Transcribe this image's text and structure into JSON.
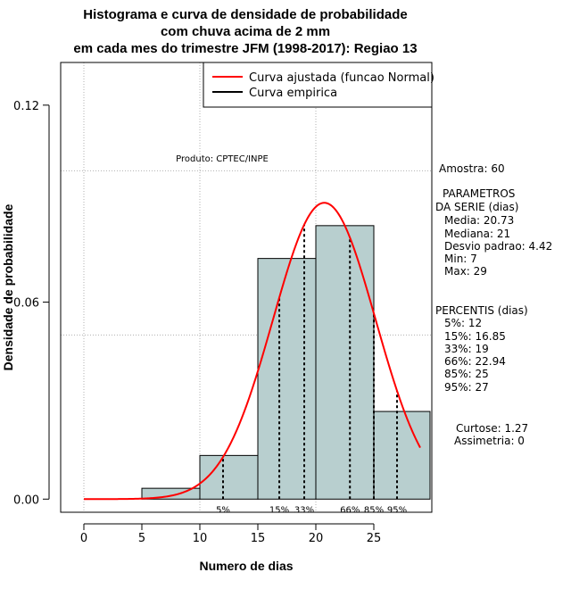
{
  "title_lines": [
    "Histograma e curva de densidade de probabilidade",
    "com chuva acima de 2 mm",
    "em cada mes do trimestre JFM (1998-2017): Regiao 13"
  ],
  "legend": {
    "entries": [
      {
        "label": "Curva ajustada (funcao Normal)",
        "color": "#ff0000"
      },
      {
        "label": "Curva empirica",
        "color": "#000000"
      }
    ],
    "position": "top-right"
  },
  "credit": "Produto: CPTEC/INPE",
  "side_panel": {
    "sample": "Amostra: 60",
    "params_title_1": "PARAMETROS",
    "params_title_2": "DA SERIE (dias)",
    "params": [
      "Media: 20.73",
      "Mediana: 21",
      "Desvio padrao: 4.42",
      "Min: 7",
      "Max: 29"
    ],
    "pct_title": "PERCENTIS (dias)",
    "percentiles": [
      "5%: 12",
      "15%: 16.85",
      "33%: 19",
      "66%: 22.94",
      "85%: 25",
      "95%: 27"
    ],
    "curtose": "Curtose: 1.27",
    "assimetria": "Assimetria: 0"
  },
  "colors": {
    "bar_fill": "#b8cfcf",
    "bar_stroke": "#000000",
    "normal_curve": "#ff0000",
    "grid": "#b0b0b0"
  },
  "chart_data": {
    "type": "bar",
    "xlabel": "Numero de dias",
    "ylabel": "Densidade de probabilidade",
    "xlim": [
      -2,
      30
    ],
    "ylim": [
      -0.004,
      0.133
    ],
    "x_ticks": [
      0,
      5,
      10,
      15,
      20,
      25
    ],
    "y_ticks": [
      0.0,
      0.06,
      0.12
    ],
    "y_tick_labels": [
      "0.00",
      "0.06",
      "0.12"
    ],
    "grid": true,
    "gridlines_x": [
      0,
      10,
      20
    ],
    "gridlines_y": [
      0.05,
      0.1
    ],
    "bins": [
      {
        "x0": 5,
        "x1": 10,
        "density": 0.0033
      },
      {
        "x0": 10,
        "x1": 15,
        "density": 0.0133
      },
      {
        "x0": 15,
        "x1": 20,
        "density": 0.0733
      },
      {
        "x0": 20,
        "x1": 25,
        "density": 0.0833
      },
      {
        "x0": 25,
        "x1": 30,
        "density": 0.0267
      }
    ],
    "normal_fit": {
      "mean": 20.73,
      "sd": 4.42,
      "x_from": 0,
      "x_to": 29
    },
    "percentile_lines": [
      {
        "label": "5%",
        "x": 12
      },
      {
        "label": "15%",
        "x": 16.85
      },
      {
        "label": "33%",
        "x": 19
      },
      {
        "label": "66%",
        "x": 22.94
      },
      {
        "label": "85%",
        "x": 25
      },
      {
        "label": "95%",
        "x": 27
      }
    ]
  }
}
